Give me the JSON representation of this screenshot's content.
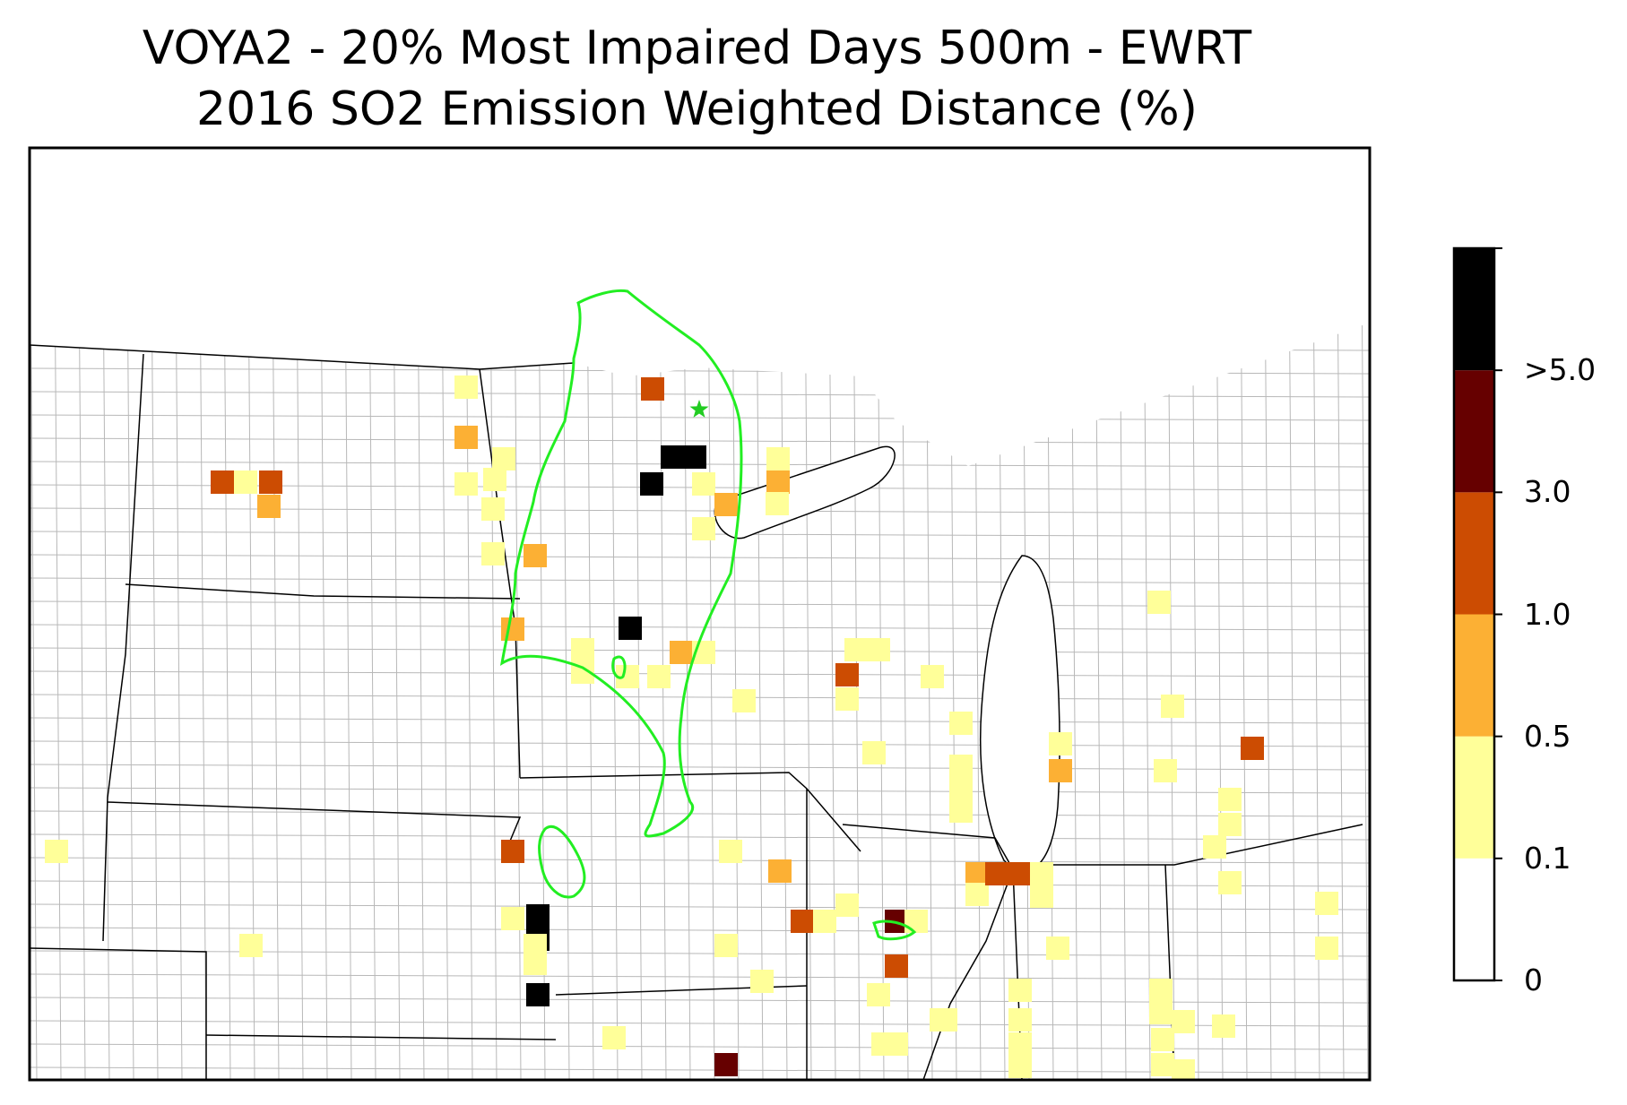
{
  "title": "VOYA2 - 20% Most Impaired Days 500m - EWRT",
  "subtitle": "2016 SO2 Emission Weighted Distance (%)",
  "colorbar": {
    "bins": [
      {
        "from": 0,
        "to": 0.1,
        "color": "#ffffff"
      },
      {
        "from": 0.1,
        "to": 0.5,
        "color": "#ffff99"
      },
      {
        "from": 0.5,
        "to": 1.0,
        "color": "#fcb034"
      },
      {
        "from": 1.0,
        "to": 3.0,
        "color": "#cc4c02"
      },
      {
        "from": 3.0,
        "to": 5.0,
        "color": "#660000"
      },
      {
        "from": 5.0,
        "to": null,
        "color": "#000000"
      }
    ],
    "tick_labels": [
      "0",
      "0.1",
      "0.5",
      "1.0",
      "3.0",
      ">5.0"
    ]
  },
  "site_marker": {
    "type": "star",
    "color": "#22cc22"
  },
  "contour_color": "#22ee22",
  "chart_data": {
    "type": "heatmap",
    "title": "VOYA2 - 20% Most Impaired Days 500m - EWRT",
    "subtitle": "2016 SO2 Emission Weighted Distance (%)",
    "legend": "colorbar right",
    "category_colors": {
      "0.1-0.5": "#ffff99",
      "0.5-1.0": "#fcb034",
      "1.0-3.0": "#cc4c02",
      "3.0-5.0": "#660000",
      ">5.0": "#000000"
    }
  }
}
